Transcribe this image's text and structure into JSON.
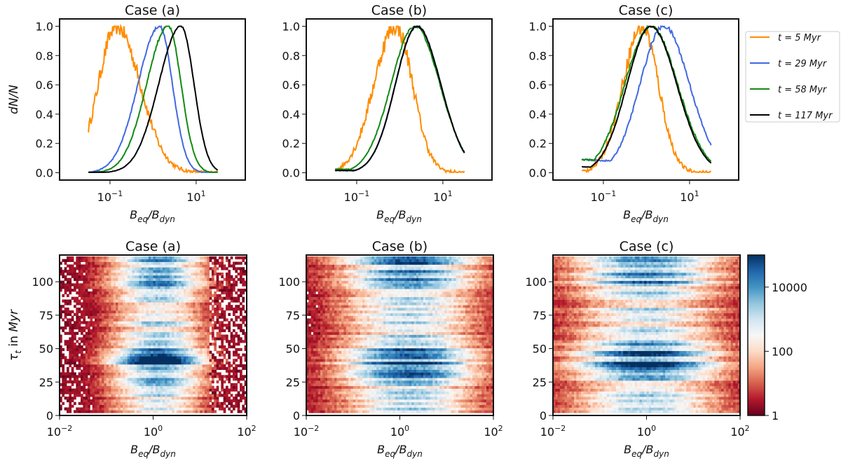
{
  "figure": {
    "legend_position": "right of top row"
  },
  "chart_data": [
    {
      "type": "line",
      "panel": "top-left",
      "title": "Case (a)",
      "xlabel": "B_eq/B_dyn",
      "ylabel": "dN/N",
      "xscale": "log",
      "xlim_log10": [
        -2.17,
        2.14
      ],
      "ylim": [
        -0.05,
        1.05
      ],
      "xticks": [
        {
          "value_log10": -1,
          "label": "10^-1"
        },
        {
          "value_log10": 1,
          "label": "10^1"
        }
      ],
      "yticks": [
        0.0,
        0.2,
        0.4,
        0.6,
        0.8,
        1.0
      ],
      "ytick_labels": [
        "0.0",
        "0.2",
        "0.4",
        "0.6",
        "0.8",
        "1.0"
      ],
      "series": [
        {
          "name": "t = 5 Myr",
          "color": "#ff8c00",
          "peak_log10": -0.85,
          "width_left": 0.42,
          "width_right": 0.55,
          "noise": 0.06,
          "x_min_log10": -1.5,
          "x_max_log10": 1.5,
          "base": 0.0,
          "floor_left": 0.0
        },
        {
          "name": "t = 29 Myr",
          "color": "#4169e1",
          "peak_log10": 0.15,
          "width_left": 0.5,
          "width_right": 0.3,
          "noise": 0.01,
          "x_min_log10": -1.5,
          "x_max_log10": 1.5,
          "base": 0.0,
          "floor_left": 0.0
        },
        {
          "name": "t = 58 Myr",
          "color": "#138a13",
          "peak_log10": 0.35,
          "width_left": 0.5,
          "width_right": 0.3,
          "noise": 0.01,
          "x_min_log10": -1.5,
          "x_max_log10": 1.5,
          "base": 0.0,
          "floor_left": 0.0
        },
        {
          "name": "t = 117 Myr",
          "color": "#000000",
          "peak_log10": 0.65,
          "width_left": 0.52,
          "width_right": 0.3,
          "noise": 0.005,
          "x_min_log10": -1.5,
          "x_max_log10": 1.5,
          "base": 0.0,
          "floor_left": 0.0
        }
      ]
    },
    {
      "type": "line",
      "panel": "top-middle",
      "title": "Case (b)",
      "xlabel": "B_eq/B_dyn",
      "ylabel": "",
      "xscale": "log",
      "xlim_log10": [
        -2.17,
        2.14
      ],
      "ylim": [
        -0.05,
        1.05
      ],
      "xticks": [
        {
          "value_log10": -1,
          "label": "10^-1"
        },
        {
          "value_log10": 1,
          "label": "10^1"
        }
      ],
      "yticks": [
        0.0,
        0.2,
        0.4,
        0.6,
        0.8,
        1.0
      ],
      "ytick_labels": [
        "0.0",
        "0.2",
        "0.4",
        "0.6",
        "0.8",
        "1.0"
      ],
      "series": [
        {
          "name": "t = 5 Myr",
          "color": "#ff8c00",
          "peak_log10": -0.1,
          "width_left": 0.5,
          "width_right": 0.4,
          "noise": 0.06,
          "x_min_log10": -1.5,
          "x_max_log10": 1.5,
          "base": 0.0,
          "floor_left": 0.02
        },
        {
          "name": "t = 29 Myr",
          "color": "#4169e1",
          "peak_log10": 0.4,
          "width_left": 0.5,
          "width_right": 0.55,
          "noise": 0.008,
          "x_min_log10": -1.5,
          "x_max_log10": 1.5,
          "base": 0.0,
          "floor_left": 0.02
        },
        {
          "name": "t = 58 Myr",
          "color": "#138a13",
          "peak_log10": 0.35,
          "width_left": 0.55,
          "width_right": 0.58,
          "noise": 0.008,
          "x_min_log10": -1.5,
          "x_max_log10": 1.5,
          "base": 0.0,
          "floor_left": 0.025
        },
        {
          "name": "t = 117 Myr",
          "color": "#000000",
          "peak_log10": 0.4,
          "width_left": 0.5,
          "width_right": 0.55,
          "noise": 0.005,
          "x_min_log10": -1.5,
          "x_max_log10": 1.5,
          "base": 0.0,
          "floor_left": 0.015
        }
      ]
    },
    {
      "type": "line",
      "panel": "top-right",
      "title": "Case (c)",
      "xlabel": "B_eq/B_dyn",
      "ylabel": "",
      "xscale": "log",
      "xlim_log10": [
        -2.17,
        2.14
      ],
      "ylim": [
        -0.05,
        1.05
      ],
      "xticks": [
        {
          "value_log10": -1,
          "label": "10^-1"
        },
        {
          "value_log10": 1,
          "label": "10^1"
        }
      ],
      "yticks": [
        0.0,
        0.2,
        0.4,
        0.6,
        0.8,
        1.0
      ],
      "ytick_labels": [
        "0.0",
        "0.2",
        "0.4",
        "0.6",
        "0.8",
        "1.0"
      ],
      "series": [
        {
          "name": "t = 5 Myr",
          "color": "#ff8c00",
          "peak_log10": -0.1,
          "width_left": 0.45,
          "width_right": 0.38,
          "noise": 0.06,
          "x_min_log10": -1.5,
          "x_max_log10": 1.5,
          "base": 0.0,
          "floor_left": 0.0
        },
        {
          "name": "t = 29 Myr",
          "color": "#4169e1",
          "peak_log10": 0.4,
          "width_left": 0.55,
          "width_right": 0.6,
          "noise": 0.015,
          "x_min_log10": -1.5,
          "x_max_log10": 1.5,
          "base": 0.0,
          "floor_left": 0.09
        },
        {
          "name": "t = 58 Myr",
          "color": "#138a13",
          "peak_log10": 0.1,
          "width_left": 0.6,
          "width_right": 0.62,
          "noise": 0.015,
          "x_min_log10": -1.5,
          "x_max_log10": 1.5,
          "base": 0.0,
          "floor_left": 0.09
        },
        {
          "name": "t = 117 Myr",
          "color": "#000000",
          "peak_log10": 0.1,
          "width_left": 0.55,
          "width_right": 0.6,
          "noise": 0.005,
          "x_min_log10": -1.5,
          "x_max_log10": 1.5,
          "base": 0.0,
          "floor_left": 0.04
        }
      ]
    },
    {
      "type": "heatmap",
      "panel": "bottom-left",
      "title": "Case (a)",
      "xlabel": "B_eq/B_dyn",
      "ylabel": "τ_t in Myr",
      "xscale": "log",
      "xlim_log10": [
        -2,
        2
      ],
      "ylim": [
        0,
        120
      ],
      "xticks": [
        {
          "value_log10": -2,
          "label": "10^-2"
        },
        {
          "value_log10": 0,
          "label": "10^0"
        },
        {
          "value_log10": 2,
          "label": "10^2"
        }
      ],
      "yticks": [
        0,
        25,
        50,
        75,
        100
      ],
      "center_log10": 0.1,
      "spread": 0.75,
      "edge_left_log10": -1.9,
      "edge_right_log10": 1.2,
      "colorscale": "RdBu",
      "color_range": [
        1,
        100000
      ],
      "colorbar_scale": "log"
    },
    {
      "type": "heatmap",
      "panel": "bottom-middle",
      "title": "Case (b)",
      "xlabel": "B_eq/B_dyn",
      "ylabel": "",
      "xscale": "log",
      "xlim_log10": [
        -2,
        2
      ],
      "ylim": [
        0,
        120
      ],
      "xticks": [
        {
          "value_log10": -2,
          "label": "10^-2"
        },
        {
          "value_log10": 0,
          "label": "10^0"
        },
        {
          "value_log10": 2,
          "label": "10^2"
        }
      ],
      "yticks": [
        0,
        25,
        50,
        75,
        100
      ],
      "center_log10": 0.2,
      "spread": 1.1,
      "edge_left_log10": -2.0,
      "edge_right_log10": 2.0,
      "colorscale": "RdBu",
      "color_range": [
        1,
        100000
      ],
      "colorbar_scale": "log"
    },
    {
      "type": "heatmap",
      "panel": "bottom-right",
      "title": "Case (c)",
      "xlabel": "B_eq/B_dyn",
      "ylabel": "",
      "xscale": "log",
      "xlim_log10": [
        -2,
        2
      ],
      "ylim": [
        0,
        120
      ],
      "xticks": [
        {
          "value_log10": -2,
          "label": "10^-2"
        },
        {
          "value_log10": 0,
          "label": "10^0"
        },
        {
          "value_log10": 2,
          "label": "10^2"
        }
      ],
      "yticks": [
        0,
        25,
        50,
        75,
        100
      ],
      "center_log10": 0.0,
      "spread": 1.2,
      "edge_left_log10": -2.0,
      "edge_right_log10": 2.0,
      "colorscale": "RdBu",
      "color_range": [
        1,
        100000
      ],
      "colorbar_scale": "log"
    }
  ],
  "legend": {
    "entries": [
      {
        "prefix": "t = ",
        "value": "5",
        "unit": "Myr",
        "color": "#ff8c00"
      },
      {
        "prefix": "t = ",
        "value": "29",
        "unit": "Myr",
        "color": "#4169e1"
      },
      {
        "prefix": "t = ",
        "value": "58",
        "unit": "Myr",
        "color": "#138a13"
      },
      {
        "prefix": "t = ",
        "value": "117",
        "unit": "Myr",
        "color": "#000000"
      }
    ]
  },
  "colorbar": {
    "ticks": [
      {
        "value": 1,
        "label": "1"
      },
      {
        "value": 100,
        "label": "100"
      },
      {
        "value": 10000,
        "label": "10000"
      }
    ],
    "range": [
      1,
      100000
    ],
    "scale": "log",
    "colors": [
      "#67001f",
      "#b2182b",
      "#d6604d",
      "#f4a582",
      "#fddbc7",
      "#f7f7f7",
      "#d1e5f0",
      "#92c5de",
      "#4393c3",
      "#2166ac",
      "#053061"
    ]
  }
}
